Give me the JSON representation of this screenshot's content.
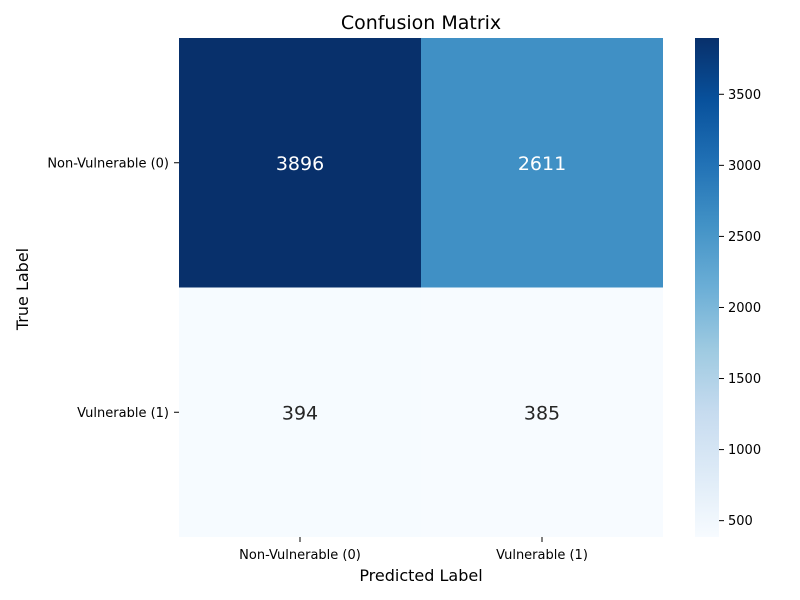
{
  "chart_data": {
    "type": "heatmap",
    "title": "Confusion Matrix",
    "xlabel": "Predicted Label",
    "ylabel": "True Label",
    "x_categories": [
      "Non-Vulnerable (0)",
      "Vulnerable (1)"
    ],
    "y_categories": [
      "Non-Vulnerable (0)",
      "Vulnerable (1)"
    ],
    "values": [
      [
        3896,
        2611
      ],
      [
        394,
        385
      ]
    ],
    "colormap": "Blues",
    "color_low": "#f7fbff",
    "color_high": "#08306b",
    "colorbar": {
      "min": 385,
      "max": 3896,
      "ticks": [
        "500",
        "1000",
        "1500",
        "2000",
        "2500",
        "3000",
        "3500"
      ]
    }
  }
}
